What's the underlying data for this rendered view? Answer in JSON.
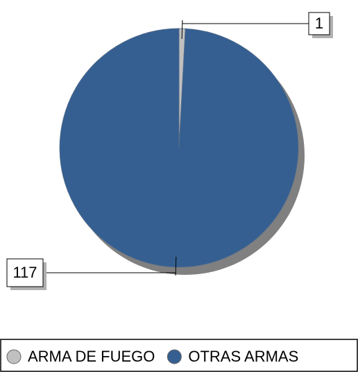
{
  "chart_data": {
    "type": "pie",
    "categories": [
      "ARMA DE FUEGO",
      "OTRAS ARMAS"
    ],
    "values": [
      1,
      117
    ],
    "colors": [
      "#c0c0c0",
      "#355f91"
    ],
    "legend": "bottom"
  }
}
